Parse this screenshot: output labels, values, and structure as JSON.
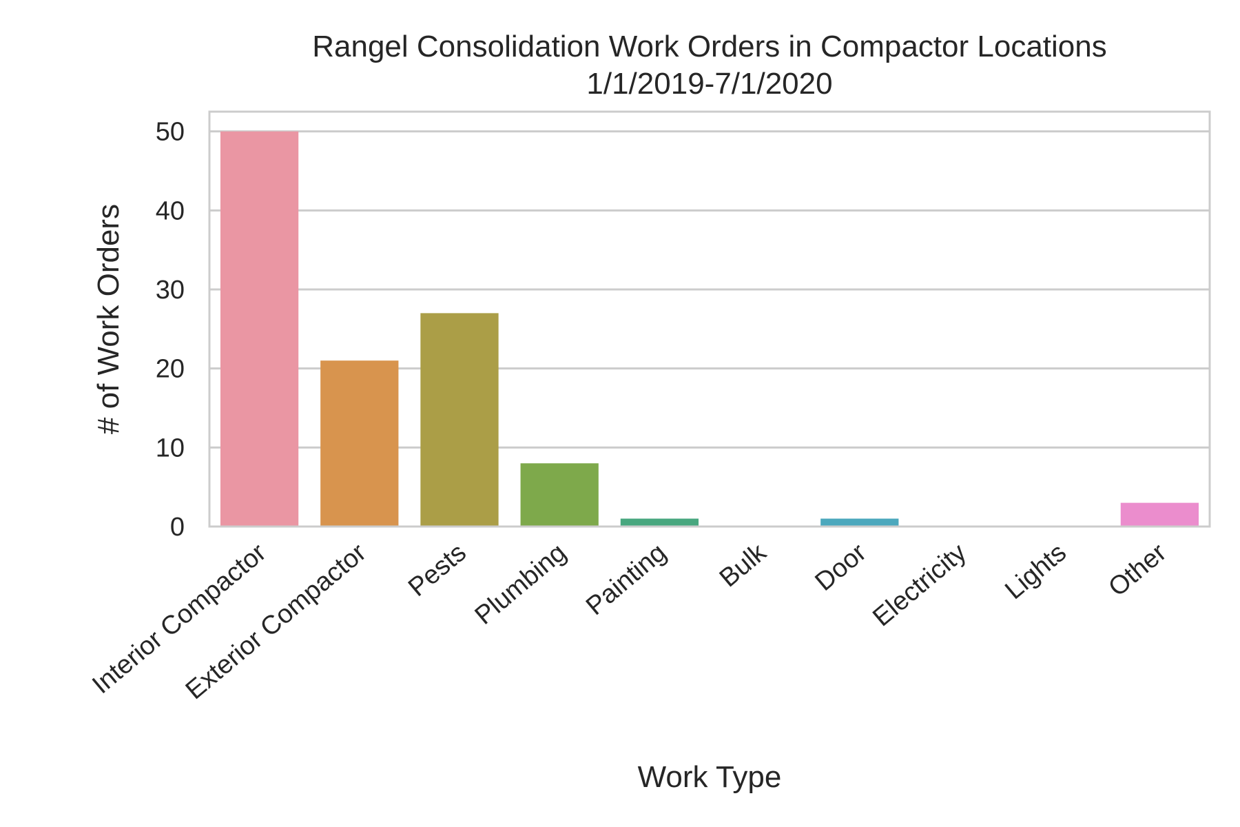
{
  "chart_data": {
    "type": "bar",
    "title": "Rangel Consolidation Work Orders in Compactor Locations",
    "subtitle": "1/1/2019-7/1/2020",
    "xlabel": "Work Type",
    "ylabel": "# of Work Orders",
    "categories": [
      "Interior Compactor",
      "Exterior Compactor",
      "Pests",
      "Plumbing",
      "Painting",
      "Bulk",
      "Door",
      "Electricity",
      "Lights",
      "Other"
    ],
    "values": [
      50,
      21,
      27,
      8,
      1,
      0,
      1,
      0,
      0,
      3
    ],
    "colors": [
      "#ea96a3",
      "#d8944e",
      "#ab9e47",
      "#7ea94b",
      "#48a77f",
      "#4aa79e",
      "#4ca8bd",
      "#8fa3e6",
      "#d48bea",
      "#eb8dcd"
    ],
    "ylim": [
      0,
      52.5
    ],
    "yticks": [
      0,
      10,
      20,
      30,
      40,
      50
    ],
    "grid": true,
    "legend": "none"
  }
}
